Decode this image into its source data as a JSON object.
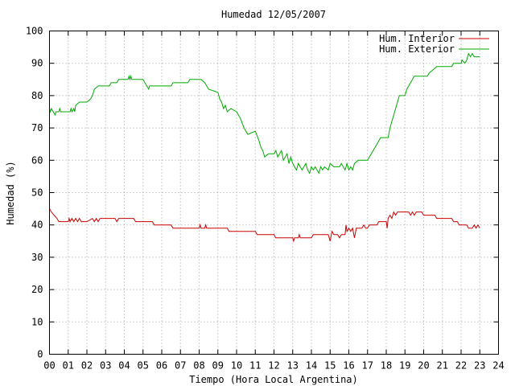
{
  "chart_data": {
    "type": "line",
    "title": "Humedad 12/05/2007",
    "xlabel": "Tiempo (Hora Local Argentina)",
    "ylabel": "Humedad (%)",
    "xlim": [
      0,
      24
    ],
    "ylim": [
      0,
      100
    ],
    "x_ticks": [
      "00",
      "01",
      "02",
      "03",
      "04",
      "05",
      "06",
      "07",
      "08",
      "09",
      "10",
      "11",
      "12",
      "13",
      "14",
      "15",
      "16",
      "17",
      "18",
      "19",
      "20",
      "21",
      "22",
      "23",
      "24"
    ],
    "y_ticks": [
      "0",
      "10",
      "20",
      "30",
      "40",
      "50",
      "60",
      "70",
      "80",
      "90",
      "100"
    ],
    "grid": true,
    "legend": "top-right",
    "series": [
      {
        "name": "Hum. Interior",
        "color": "#cc0000",
        "points": [
          [
            0.0,
            45
          ],
          [
            0.1,
            44
          ],
          [
            0.25,
            43
          ],
          [
            0.4,
            42
          ],
          [
            0.5,
            41
          ],
          [
            1.0,
            41
          ],
          [
            1.05,
            42
          ],
          [
            1.1,
            41
          ],
          [
            1.2,
            42
          ],
          [
            1.3,
            41
          ],
          [
            1.4,
            42
          ],
          [
            1.5,
            41
          ],
          [
            1.6,
            42
          ],
          [
            1.7,
            41
          ],
          [
            2.0,
            41
          ],
          [
            2.3,
            42
          ],
          [
            2.4,
            41
          ],
          [
            2.5,
            42
          ],
          [
            2.6,
            41
          ],
          [
            2.7,
            42
          ],
          [
            3.5,
            42
          ],
          [
            3.6,
            41
          ],
          [
            3.7,
            42
          ],
          [
            4.5,
            42
          ],
          [
            4.6,
            41
          ],
          [
            5.5,
            41
          ],
          [
            5.6,
            40
          ],
          [
            6.5,
            40
          ],
          [
            6.6,
            39
          ],
          [
            8.0,
            39
          ],
          [
            8.05,
            40
          ],
          [
            8.1,
            39
          ],
          [
            8.3,
            39
          ],
          [
            8.35,
            40
          ],
          [
            8.4,
            39
          ],
          [
            9.5,
            39
          ],
          [
            9.6,
            38
          ],
          [
            11.0,
            38
          ],
          [
            11.1,
            37
          ],
          [
            12.0,
            37
          ],
          [
            12.1,
            36
          ],
          [
            13.0,
            36
          ],
          [
            13.05,
            35
          ],
          [
            13.1,
            36
          ],
          [
            13.3,
            36
          ],
          [
            13.35,
            37
          ],
          [
            13.4,
            36
          ],
          [
            14.0,
            36
          ],
          [
            14.1,
            37
          ],
          [
            14.9,
            37
          ],
          [
            15.0,
            35
          ],
          [
            15.1,
            38
          ],
          [
            15.2,
            37
          ],
          [
            15.4,
            37
          ],
          [
            15.5,
            36
          ],
          [
            15.6,
            37
          ],
          [
            15.8,
            37
          ],
          [
            15.85,
            40
          ],
          [
            15.9,
            38
          ],
          [
            16.0,
            39
          ],
          [
            16.1,
            38
          ],
          [
            16.2,
            39
          ],
          [
            16.3,
            36
          ],
          [
            16.4,
            39
          ],
          [
            16.7,
            39
          ],
          [
            16.8,
            40
          ],
          [
            16.9,
            39
          ],
          [
            17.0,
            39
          ],
          [
            17.1,
            40
          ],
          [
            17.5,
            40
          ],
          [
            17.6,
            41
          ],
          [
            18.0,
            41
          ],
          [
            18.05,
            39
          ],
          [
            18.1,
            42
          ],
          [
            18.2,
            43
          ],
          [
            18.3,
            42
          ],
          [
            18.4,
            44
          ],
          [
            18.5,
            43
          ],
          [
            18.6,
            44
          ],
          [
            19.2,
            44
          ],
          [
            19.3,
            43
          ],
          [
            19.4,
            44
          ],
          [
            19.5,
            43
          ],
          [
            19.6,
            44
          ],
          [
            19.9,
            44
          ],
          [
            20.0,
            43
          ],
          [
            20.6,
            43
          ],
          [
            20.7,
            42
          ],
          [
            21.5,
            42
          ],
          [
            21.6,
            41
          ],
          [
            21.8,
            41
          ],
          [
            21.9,
            40
          ],
          [
            22.3,
            40
          ],
          [
            22.4,
            39
          ],
          [
            22.6,
            39
          ],
          [
            22.7,
            40
          ],
          [
            22.8,
            39
          ],
          [
            22.9,
            40
          ],
          [
            23.0,
            39
          ]
        ]
      },
      {
        "name": "Hum. Exterior",
        "color": "#00aa00",
        "points": [
          [
            0.0,
            76
          ],
          [
            0.05,
            75
          ],
          [
            0.1,
            76
          ],
          [
            0.2,
            75
          ],
          [
            0.3,
            74
          ],
          [
            0.35,
            75
          ],
          [
            0.5,
            75
          ],
          [
            0.55,
            76
          ],
          [
            0.6,
            75
          ],
          [
            1.1,
            75
          ],
          [
            1.15,
            76
          ],
          [
            1.2,
            75
          ],
          [
            1.3,
            76
          ],
          [
            1.35,
            75
          ],
          [
            1.4,
            77
          ],
          [
            1.6,
            78
          ],
          [
            2.0,
            78
          ],
          [
            2.2,
            79
          ],
          [
            2.3,
            80
          ],
          [
            2.4,
            82
          ],
          [
            2.6,
            83
          ],
          [
            3.2,
            83
          ],
          [
            3.3,
            84
          ],
          [
            3.6,
            84
          ],
          [
            3.7,
            85
          ],
          [
            4.2,
            85
          ],
          [
            4.25,
            86
          ],
          [
            4.3,
            85
          ],
          [
            4.35,
            86
          ],
          [
            4.4,
            85
          ],
          [
            5.0,
            85
          ],
          [
            5.1,
            84
          ],
          [
            5.2,
            83
          ],
          [
            5.3,
            82
          ],
          [
            5.35,
            83
          ],
          [
            6.5,
            83
          ],
          [
            6.6,
            84
          ],
          [
            7.4,
            84
          ],
          [
            7.5,
            85
          ],
          [
            8.1,
            85
          ],
          [
            8.3,
            84
          ],
          [
            8.5,
            82
          ],
          [
            9.0,
            81
          ],
          [
            9.1,
            79
          ],
          [
            9.2,
            78
          ],
          [
            9.3,
            76
          ],
          [
            9.4,
            77
          ],
          [
            9.5,
            75
          ],
          [
            9.7,
            76
          ],
          [
            10.0,
            75
          ],
          [
            10.2,
            73
          ],
          [
            10.4,
            70
          ],
          [
            10.6,
            68
          ],
          [
            11.0,
            69
          ],
          [
            11.2,
            66
          ],
          [
            11.3,
            64
          ],
          [
            11.4,
            63
          ],
          [
            11.5,
            61
          ],
          [
            11.7,
            62
          ],
          [
            12.0,
            62
          ],
          [
            12.1,
            63
          ],
          [
            12.2,
            61
          ],
          [
            12.3,
            62
          ],
          [
            12.4,
            63
          ],
          [
            12.5,
            60
          ],
          [
            12.6,
            61
          ],
          [
            12.7,
            62
          ],
          [
            12.8,
            59
          ],
          [
            12.9,
            61
          ],
          [
            13.0,
            59
          ],
          [
            13.1,
            58
          ],
          [
            13.2,
            57
          ],
          [
            13.3,
            59
          ],
          [
            13.4,
            58
          ],
          [
            13.5,
            57
          ],
          [
            13.6,
            58
          ],
          [
            13.7,
            59
          ],
          [
            13.8,
            57
          ],
          [
            13.9,
            56
          ],
          [
            14.0,
            58
          ],
          [
            14.1,
            57
          ],
          [
            14.2,
            58
          ],
          [
            14.3,
            57
          ],
          [
            14.4,
            56
          ],
          [
            14.5,
            58
          ],
          [
            14.6,
            57
          ],
          [
            14.7,
            58
          ],
          [
            14.9,
            57
          ],
          [
            15.0,
            59
          ],
          [
            15.2,
            58
          ],
          [
            15.5,
            58
          ],
          [
            15.6,
            59
          ],
          [
            15.7,
            58
          ],
          [
            15.8,
            57
          ],
          [
            15.9,
            59
          ],
          [
            16.0,
            57
          ],
          [
            16.1,
            58
          ],
          [
            16.2,
            57
          ],
          [
            16.3,
            59
          ],
          [
            16.5,
            60
          ],
          [
            17.0,
            60
          ],
          [
            17.2,
            62
          ],
          [
            17.5,
            65
          ],
          [
            17.7,
            67
          ],
          [
            18.1,
            67
          ],
          [
            18.2,
            70
          ],
          [
            18.4,
            74
          ],
          [
            18.5,
            76
          ],
          [
            18.7,
            80
          ],
          [
            19.0,
            80
          ],
          [
            19.1,
            82
          ],
          [
            19.3,
            84
          ],
          [
            19.5,
            86
          ],
          [
            20.2,
            86
          ],
          [
            20.3,
            87
          ],
          [
            20.5,
            88
          ],
          [
            20.7,
            89
          ],
          [
            21.5,
            89
          ],
          [
            21.6,
            90
          ],
          [
            22.0,
            90
          ],
          [
            22.05,
            91
          ],
          [
            22.2,
            90
          ],
          [
            22.3,
            91
          ],
          [
            22.35,
            92
          ],
          [
            22.4,
            93
          ],
          [
            22.5,
            92
          ],
          [
            22.6,
            93
          ],
          [
            22.7,
            92
          ],
          [
            23.0,
            92
          ]
        ]
      }
    ]
  }
}
